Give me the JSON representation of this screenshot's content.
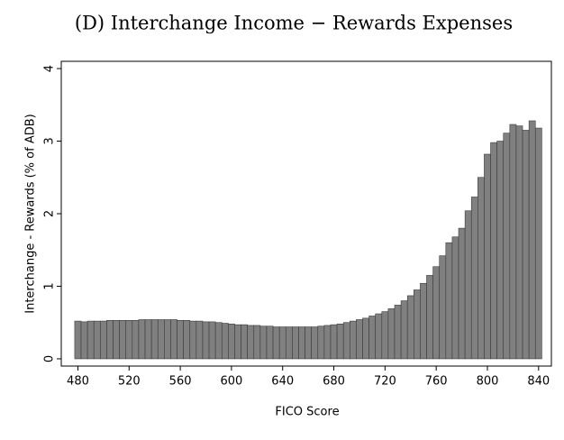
{
  "chart_data": {
    "type": "bar",
    "title": "(D) Interchange Income − Rewards Expenses",
    "xlabel": "FICO Score",
    "ylabel": "Interchange - Rewards (% of ADB)",
    "x": [
      480,
      485,
      490,
      495,
      500,
      505,
      510,
      515,
      520,
      525,
      530,
      535,
      540,
      545,
      550,
      555,
      560,
      565,
      570,
      575,
      580,
      585,
      590,
      595,
      600,
      605,
      610,
      615,
      620,
      625,
      630,
      635,
      640,
      645,
      650,
      655,
      660,
      665,
      670,
      675,
      680,
      685,
      690,
      695,
      700,
      705,
      710,
      715,
      720,
      725,
      730,
      735,
      740,
      745,
      750,
      755,
      760,
      765,
      770,
      775,
      780,
      785,
      790,
      795,
      800,
      805,
      810,
      815,
      820,
      825,
      830,
      835,
      840
    ],
    "values": [
      0.52,
      0.51,
      0.52,
      0.52,
      0.52,
      0.53,
      0.53,
      0.53,
      0.53,
      0.53,
      0.54,
      0.54,
      0.54,
      0.54,
      0.54,
      0.54,
      0.53,
      0.53,
      0.52,
      0.52,
      0.51,
      0.51,
      0.5,
      0.49,
      0.48,
      0.47,
      0.47,
      0.46,
      0.46,
      0.45,
      0.45,
      0.44,
      0.44,
      0.44,
      0.44,
      0.44,
      0.44,
      0.44,
      0.45,
      0.46,
      0.47,
      0.48,
      0.5,
      0.52,
      0.54,
      0.56,
      0.59,
      0.62,
      0.65,
      0.69,
      0.74,
      0.8,
      0.87,
      0.95,
      1.04,
      1.15,
      1.27,
      1.42,
      1.6,
      1.68,
      1.8,
      2.04,
      2.23,
      2.5,
      2.82,
      2.98,
      3.0,
      3.11,
      3.23,
      3.21,
      3.15,
      3.28,
      3.18
    ],
    "bar_width": 5,
    "color": "#808080",
    "xlim": [
      467,
      850
    ],
    "xticks": [
      480,
      520,
      560,
      600,
      640,
      680,
      720,
      760,
      800,
      840
    ],
    "ylim": [
      -0.1,
      4.1
    ],
    "yticks": [
      0,
      1,
      2,
      3,
      4
    ]
  }
}
